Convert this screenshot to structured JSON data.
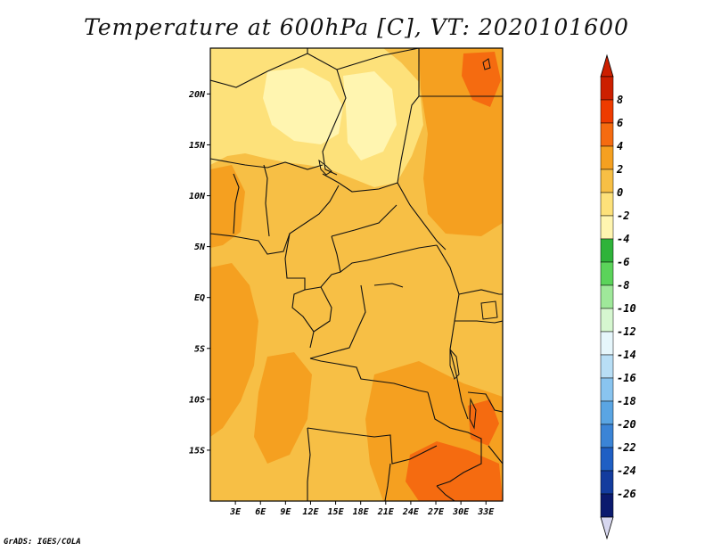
{
  "title": "Temperature at 600hPa [C], VT: 2020101600",
  "credit": "GrADS: IGES/COLA",
  "lat_labels": [
    "20N",
    "15N",
    "10N",
    "5N",
    "EQ",
    "5S",
    "10S",
    "15S"
  ],
  "lon_labels": [
    "3E",
    "6E",
    "9E",
    "12E",
    "15E",
    "18E",
    "21E",
    "24E",
    "27E",
    "30E",
    "33E"
  ],
  "colorbar": {
    "labels": [
      "8",
      "6",
      "4",
      "2",
      "0",
      "-2",
      "-4",
      "-6",
      "-8",
      "-10",
      "-12",
      "-14",
      "-16",
      "-18",
      "-20",
      "-22",
      "-24",
      "-26"
    ],
    "colors": [
      "#cc1f00",
      "#ee3b00",
      "#f56b10",
      "#f5a020",
      "#f7bf45",
      "#fde17a",
      "#fff5b0",
      "#2fb33a",
      "#5bd35a",
      "#9fe89a",
      "#d6f7d0",
      "#e6f6fb",
      "#b8def5",
      "#89c4ef",
      "#5aa5e3",
      "#3b84d6",
      "#1f5fc4",
      "#133c9e",
      "#0b1a6e"
    ],
    "over_color": "#cc1f00",
    "under_color": "#d7d7ef"
  },
  "map": {
    "lon_range": [
      0,
      35
    ],
    "lat_range": [
      -20,
      24.5
    ],
    "background_color": "#f7bf45",
    "warm_color": "#f5a020",
    "hot_color": "#f56b10",
    "cool_color": "#fde17a",
    "coldest_color": "#fff5b0"
  }
}
